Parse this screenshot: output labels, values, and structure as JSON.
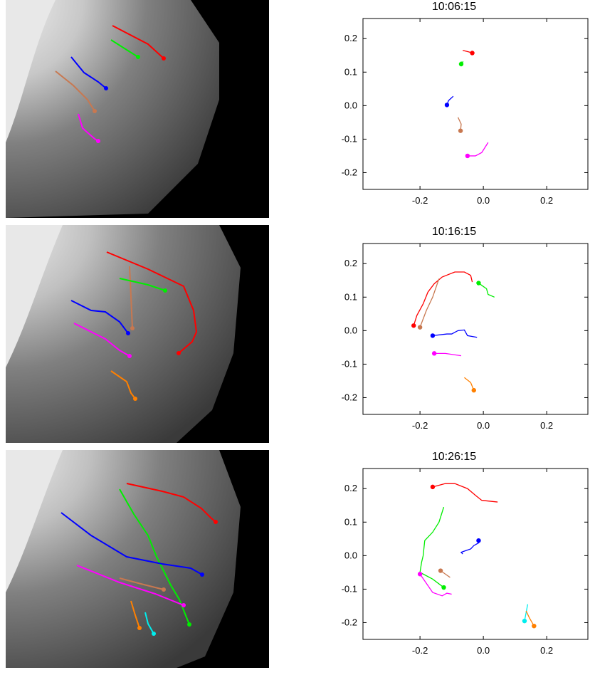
{
  "colors": {
    "red": "#ff0000",
    "green": "#00ee00",
    "blue": "#0000ff",
    "sienna": "#c87850",
    "magenta": "#ff00ff",
    "orange": "#ff8000",
    "cyan": "#00eeee"
  },
  "chart_data": [
    {
      "type": "line",
      "title": "10:06:15",
      "xlabel": "",
      "ylabel": "",
      "xlim": [
        -0.38,
        0.33
      ],
      "ylim": [
        -0.25,
        0.26
      ],
      "xticks": [
        "-0.2",
        "0.0",
        "0.2"
      ],
      "xtick_values": [
        -0.2,
        0.0,
        0.2
      ],
      "yticks": [
        "0.2",
        "0.1",
        "0.0",
        "-0.1",
        "-0.2"
      ],
      "ytick_values": [
        0.2,
        0.1,
        0.0,
        -0.1,
        -0.2
      ],
      "grid": false,
      "series": [
        {
          "color": "red",
          "x": [
            -0.065,
            -0.045,
            -0.035
          ],
          "y": [
            0.165,
            0.16,
            0.157
          ],
          "end": [
            -0.035,
            0.157
          ]
        },
        {
          "color": "green",
          "x": [
            -0.072,
            -0.065,
            -0.07
          ],
          "y": [
            0.13,
            0.13,
            0.124
          ],
          "end": [
            -0.07,
            0.124
          ]
        },
        {
          "color": "blue",
          "x": [
            -0.095,
            -0.11,
            -0.115
          ],
          "y": [
            0.028,
            0.015,
            0.002
          ],
          "end": [
            -0.115,
            0.002
          ]
        },
        {
          "color": "sienna",
          "x": [
            -0.08,
            -0.07,
            -0.072
          ],
          "y": [
            -0.035,
            -0.055,
            -0.075
          ],
          "end": [
            -0.072,
            -0.075
          ]
        },
        {
          "color": "magenta",
          "x": [
            0.015,
            -0.005,
            -0.025,
            -0.05
          ],
          "y": [
            -0.11,
            -0.14,
            -0.15,
            -0.15
          ],
          "end": [
            -0.05,
            -0.15
          ]
        }
      ]
    },
    {
      "type": "line",
      "title": "10:16:15",
      "xlabel": "",
      "ylabel": "",
      "xlim": [
        -0.38,
        0.33
      ],
      "ylim": [
        -0.25,
        0.26
      ],
      "xticks": [
        "-0.2",
        "0.0",
        "0.2"
      ],
      "xtick_values": [
        -0.2,
        0.0,
        0.2
      ],
      "yticks": [
        "0.2",
        "0.1",
        "0.0",
        "-0.1",
        "-0.2"
      ],
      "ytick_values": [
        0.2,
        0.1,
        0.0,
        -0.1,
        -0.2
      ],
      "grid": false,
      "series": [
        {
          "color": "red",
          "x": [
            -0.035,
            -0.04,
            -0.06,
            -0.09,
            -0.13,
            -0.155,
            -0.175,
            -0.19,
            -0.21,
            -0.22
          ],
          "y": [
            0.145,
            0.165,
            0.175,
            0.175,
            0.16,
            0.14,
            0.115,
            0.08,
            0.045,
            0.015
          ],
          "end": [
            -0.22,
            0.015
          ]
        },
        {
          "color": "sienna",
          "x": [
            -0.14,
            -0.16,
            -0.18,
            -0.2
          ],
          "y": [
            0.155,
            0.1,
            0.06,
            0.01
          ],
          "end": [
            -0.2,
            0.01
          ]
        },
        {
          "color": "green",
          "x": [
            0.035,
            0.015,
            0.01,
            -0.005,
            -0.015
          ],
          "y": [
            0.1,
            0.108,
            0.125,
            0.135,
            0.142
          ],
          "end": [
            -0.015,
            0.142
          ]
        },
        {
          "color": "blue",
          "x": [
            -0.02,
            -0.05,
            -0.06,
            -0.08,
            -0.09,
            -0.1,
            -0.115,
            -0.16
          ],
          "y": [
            -0.02,
            -0.015,
            0.002,
            0.0,
            -0.005,
            -0.01,
            -0.01,
            -0.015
          ],
          "end": [
            -0.16,
            -0.015
          ]
        },
        {
          "color": "magenta",
          "x": [
            -0.07,
            -0.12,
            -0.155
          ],
          "y": [
            -0.075,
            -0.068,
            -0.068
          ],
          "end": [
            -0.155,
            -0.068
          ]
        },
        {
          "color": "orange",
          "x": [
            -0.06,
            -0.04,
            -0.03
          ],
          "y": [
            -0.14,
            -0.155,
            -0.178
          ],
          "end": [
            -0.03,
            -0.178
          ]
        }
      ]
    },
    {
      "type": "line",
      "title": "10:26:15",
      "xlabel": "",
      "ylabel": "",
      "xlim": [
        -0.38,
        0.33
      ],
      "ylim": [
        -0.25,
        0.26
      ],
      "xticks": [
        "-0.2",
        "0.0",
        "0.2"
      ],
      "xtick_values": [
        -0.2,
        0.0,
        0.2
      ],
      "yticks": [
        "0.2",
        "0.1",
        "0.0",
        "-0.1",
        "-0.2"
      ],
      "ytick_values": [
        0.2,
        0.1,
        0.0,
        -0.1,
        -0.2
      ],
      "grid": false,
      "series": [
        {
          "color": "red",
          "x": [
            0.045,
            -0.005,
            -0.025,
            -0.05,
            -0.09,
            -0.12,
            -0.16
          ],
          "y": [
            0.16,
            0.165,
            0.18,
            0.2,
            0.215,
            0.215,
            0.205
          ],
          "end": [
            -0.16,
            0.205
          ]
        },
        {
          "color": "green",
          "x": [
            -0.125,
            -0.14,
            -0.16,
            -0.185,
            -0.19,
            -0.195,
            -0.2,
            -0.16,
            -0.125
          ],
          "y": [
            0.145,
            0.1,
            0.07,
            0.045,
            0.0,
            -0.02,
            -0.05,
            -0.07,
            -0.095
          ],
          "end": [
            -0.125,
            -0.095
          ]
        },
        {
          "color": "blue",
          "x": [
            -0.065,
            -0.07,
            -0.055,
            -0.04,
            -0.03,
            -0.015,
            -0.015
          ],
          "y": [
            0.005,
            0.01,
            0.015,
            0.02,
            0.03,
            0.038,
            0.045
          ],
          "end": [
            -0.015,
            0.045
          ]
        },
        {
          "color": "sienna",
          "x": [
            -0.105,
            -0.12,
            -0.135
          ],
          "y": [
            -0.065,
            -0.055,
            -0.045
          ],
          "end": [
            -0.135,
            -0.045
          ]
        },
        {
          "color": "magenta",
          "x": [
            -0.1,
            -0.115,
            -0.13,
            -0.16,
            -0.2
          ],
          "y": [
            -0.115,
            -0.112,
            -0.12,
            -0.11,
            -0.055
          ],
          "end": [
            -0.2,
            -0.055
          ]
        },
        {
          "color": "cyan",
          "x": [
            0.14,
            0.135,
            0.13
          ],
          "y": [
            -0.145,
            -0.17,
            -0.195
          ],
          "end": [
            0.13,
            -0.195
          ]
        },
        {
          "color": "orange",
          "x": [
            0.135,
            0.145,
            0.16
          ],
          "y": [
            -0.165,
            -0.185,
            -0.21
          ],
          "end": [
            0.16,
            -0.21
          ]
        }
      ]
    }
  ]
}
